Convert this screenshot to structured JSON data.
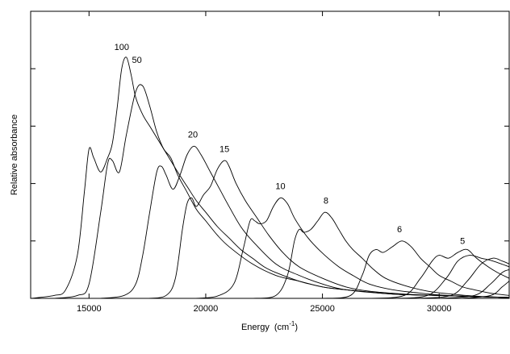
{
  "chart_data": {
    "type": "line",
    "title": "",
    "xlabel": "Energy",
    "xlabel_unit_base": "(cm",
    "xlabel_unit_exp": "-1",
    "xlabel_unit_close": ")",
    "ylabel": "Relative absorbance",
    "xlim": [
      12500,
      33000
    ],
    "ylim": [
      0,
      100
    ],
    "x_ticks": [
      15000,
      20000,
      25000,
      30000
    ],
    "x_tick_labels": [
      "15000",
      "20000",
      "25000",
      "30000"
    ],
    "y_ticks": [
      20,
      40,
      60,
      80
    ],
    "grid": false,
    "legend": "none",
    "line_color": "#000000",
    "series": [
      {
        "name": "100",
        "x": [
          12500,
          13500,
          14000,
          14500,
          14800,
          15000,
          15200,
          15500,
          15800,
          16000,
          16200,
          16400,
          16600,
          16800,
          17000,
          17300,
          17600,
          17900,
          18200,
          18500,
          18800,
          19200,
          19600,
          20000,
          20500,
          21000,
          21500,
          22000,
          22500,
          23000,
          24000,
          25000,
          26000,
          28000,
          30000,
          32000,
          33000
        ],
        "y": [
          0,
          1,
          3,
          15,
          37,
          52,
          49,
          44,
          49,
          54,
          66,
          80,
          84,
          78,
          70,
          64,
          60,
          56,
          52,
          48,
          44,
          39,
          34,
          30,
          25,
          21,
          17,
          14,
          11,
          9,
          6,
          4,
          3,
          1.5,
          1,
          0.5,
          0.3
        ]
      },
      {
        "name": "50",
        "x": [
          13500,
          14500,
          15000,
          15500,
          15800,
          16000,
          16300,
          16600,
          17000,
          17300,
          17600,
          17900,
          18200,
          18500,
          18800,
          19200,
          19600,
          20000,
          20500,
          21000,
          22000,
          23000,
          24000,
          25000,
          26000,
          28000,
          30000,
          32000,
          33000
        ],
        "y": [
          0,
          1,
          5,
          30,
          47,
          48,
          44,
          57,
          72,
          74,
          67,
          58,
          52,
          49,
          43,
          37,
          31,
          27,
          22,
          18,
          12,
          8,
          6,
          4,
          3,
          1.5,
          1,
          0.5,
          0.3
        ]
      },
      {
        "name": "20",
        "x": [
          15500,
          16500,
          17000,
          17300,
          17600,
          17900,
          18100,
          18300,
          18600,
          18900,
          19200,
          19500,
          19800,
          20200,
          20600,
          21000,
          21500,
          22000,
          23000,
          24000,
          25000,
          26000,
          28000,
          30000,
          32000,
          33000
        ],
        "y": [
          0,
          1,
          5,
          15,
          30,
          44,
          46,
          43,
          38,
          43,
          50,
          53,
          50,
          44,
          38,
          32,
          25,
          20,
          12,
          8,
          5,
          3,
          1.5,
          1,
          0.5,
          0.3
        ]
      },
      {
        "name": "15",
        "x": [
          17500,
          18300,
          18700,
          19000,
          19200,
          19400,
          19600,
          19900,
          20200,
          20500,
          20800,
          21000,
          21300,
          21700,
          22200,
          22700,
          23300,
          24000,
          25000,
          26000,
          27000,
          28500,
          30000,
          32000,
          33000
        ],
        "y": [
          0,
          1,
          7,
          24,
          33,
          35,
          32,
          36,
          39,
          45,
          48,
          46,
          40,
          34,
          28,
          22,
          16,
          11,
          7,
          4,
          2.5,
          1.5,
          1,
          0.5,
          0.3
        ]
      },
      {
        "name": "10",
        "x": [
          19500,
          20500,
          21200,
          21600,
          21900,
          22100,
          22300,
          22600,
          22900,
          23200,
          23500,
          23800,
          24200,
          24600,
          25100,
          25700,
          26300,
          27000,
          28000,
          29000,
          30000,
          31500,
          33000
        ],
        "y": [
          0,
          0.8,
          5,
          17,
          27,
          27,
          26,
          27,
          32,
          35,
          33,
          28,
          23,
          19,
          15,
          11,
          8,
          5,
          3,
          2,
          1.2,
          0.6,
          0.3
        ]
      },
      {
        "name": "8",
        "x": [
          22000,
          23000,
          23500,
          23800,
          24000,
          24200,
          24500,
          24800,
          25100,
          25400,
          25700,
          26000,
          26300,
          26700,
          27200,
          27700,
          28500,
          29500,
          30500,
          31500,
          33000
        ],
        "y": [
          0,
          1,
          8,
          20,
          24,
          23,
          24,
          27,
          30,
          28,
          24,
          20,
          17,
          14,
          10,
          7,
          4.5,
          2.5,
          1.5,
          0.8,
          0.3
        ]
      },
      {
        "name": "6",
        "x": [
          25000,
          26200,
          26700,
          27000,
          27300,
          27600,
          28000,
          28400,
          28800,
          29200,
          29600,
          30000,
          30500,
          31000,
          31500,
          32200,
          33000
        ],
        "y": [
          0,
          1,
          8,
          15,
          17,
          16,
          18,
          20,
          18,
          14,
          11,
          8,
          6,
          4,
          3,
          1.8,
          1
        ]
      },
      {
        "name": "5",
        "x": [
          27000,
          28500,
          29200,
          29700,
          30000,
          30400,
          30800,
          31200,
          31600,
          32100,
          32500,
          33000
        ],
        "y": [
          0,
          1,
          7,
          13,
          15,
          14,
          16,
          17,
          14,
          11,
          9,
          7
        ]
      },
      {
        "name": "",
        "x": [
          28000,
          29500,
          30300,
          30800,
          31300,
          31800,
          32300,
          33000
        ],
        "y": [
          0,
          1,
          7,
          13,
          15,
          14,
          13,
          11
        ]
      },
      {
        "name": "",
        "x": [
          29000,
          30500,
          31200,
          31800,
          32300,
          32700,
          33000
        ],
        "y": [
          0,
          1,
          6,
          12,
          14,
          13,
          12
        ]
      },
      {
        "name": "",
        "x": [
          30000,
          31500,
          32200,
          32700,
          33000
        ],
        "y": [
          0,
          1,
          5,
          9,
          10
        ]
      },
      {
        "name": "",
        "x": [
          31000,
          32200,
          32700,
          33000
        ],
        "y": [
          0,
          1,
          4,
          6
        ]
      }
    ],
    "annotations": [
      {
        "text": "100",
        "x": 16400,
        "y": 86.5
      },
      {
        "text": "50",
        "x": 17050,
        "y": 82
      },
      {
        "text": "20",
        "x": 19450,
        "y": 56
      },
      {
        "text": "15",
        "x": 20800,
        "y": 51
      },
      {
        "text": "10",
        "x": 23200,
        "y": 38
      },
      {
        "text": "8",
        "x": 25150,
        "y": 33
      },
      {
        "text": "6",
        "x": 28300,
        "y": 23
      },
      {
        "text": "5",
        "x": 31000,
        "y": 19
      }
    ]
  }
}
